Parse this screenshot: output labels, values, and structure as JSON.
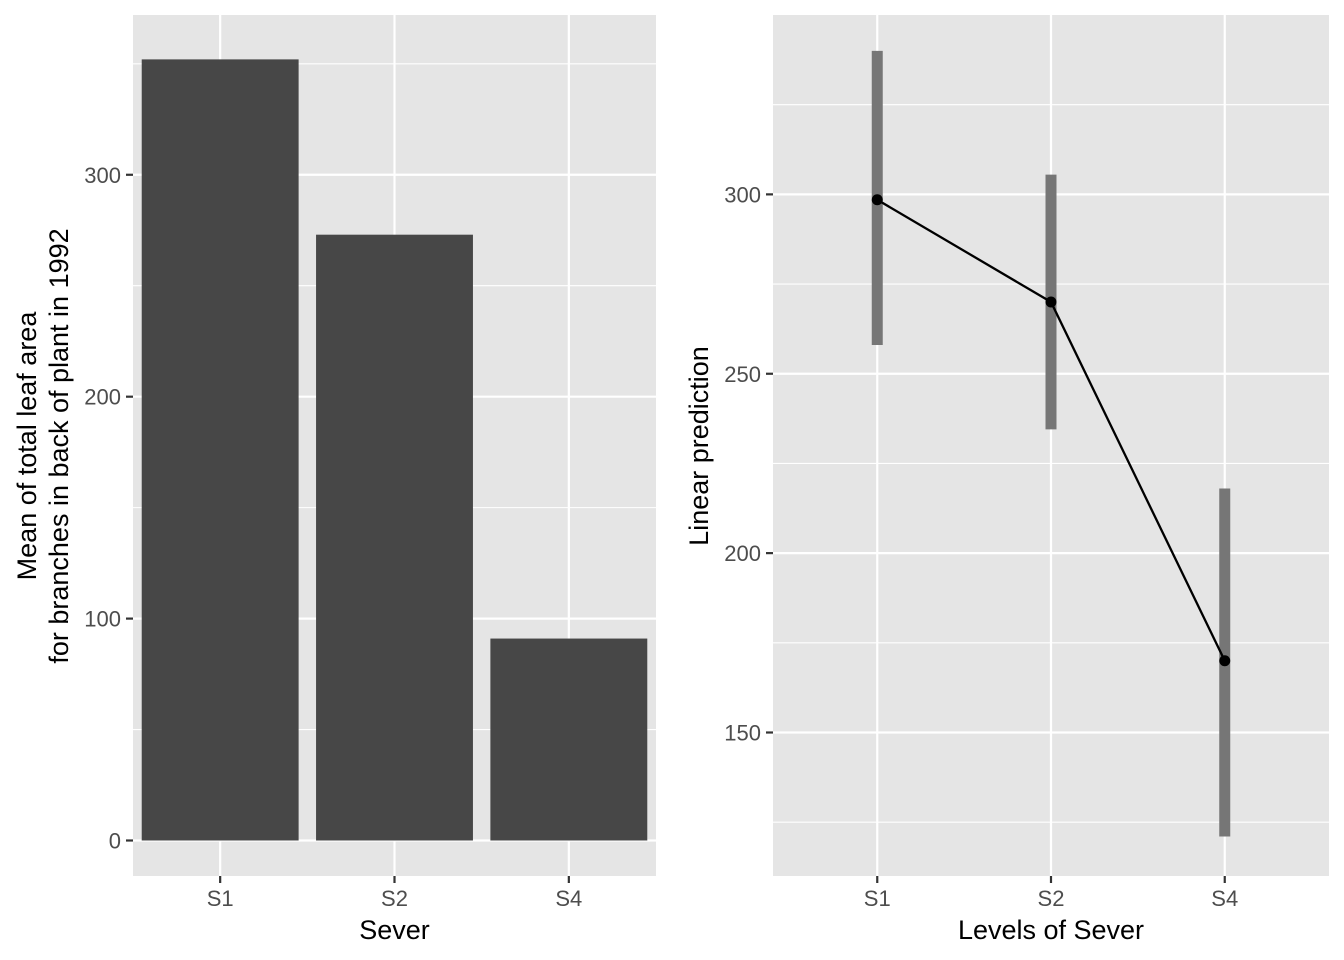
{
  "chart_data": [
    {
      "type": "bar",
      "categories": [
        "S1",
        "S2",
        "S4"
      ],
      "values": [
        352,
        273,
        91
      ],
      "xlabel": "Sever",
      "ylabel_lines": [
        "Mean of total leaf area",
        "for branches in back of plant in 1992"
      ],
      "ylim": [
        -16,
        372
      ],
      "yticks": [
        0,
        100,
        200,
        300
      ],
      "grid": true,
      "legend": "none",
      "colors": {
        "bar": "#474747",
        "panel": "#e5e5e5",
        "grid": "#ffffff"
      }
    },
    {
      "type": "line",
      "categories": [
        "S1",
        "S2",
        "S4"
      ],
      "values": [
        298.5,
        270,
        170
      ],
      "ci_lower": [
        258,
        234.5,
        121
      ],
      "ci_upper": [
        340,
        305.5,
        218
      ],
      "xlabel": "Levels of Sever",
      "ylabel": "Linear prediction",
      "ylim": [
        110,
        350
      ],
      "yticks": [
        150,
        200,
        250,
        300
      ],
      "grid": true,
      "legend": "none",
      "colors": {
        "line": "#000000",
        "errorbar": "#767676",
        "panel": "#e5e5e5",
        "grid": "#ffffff"
      }
    }
  ]
}
